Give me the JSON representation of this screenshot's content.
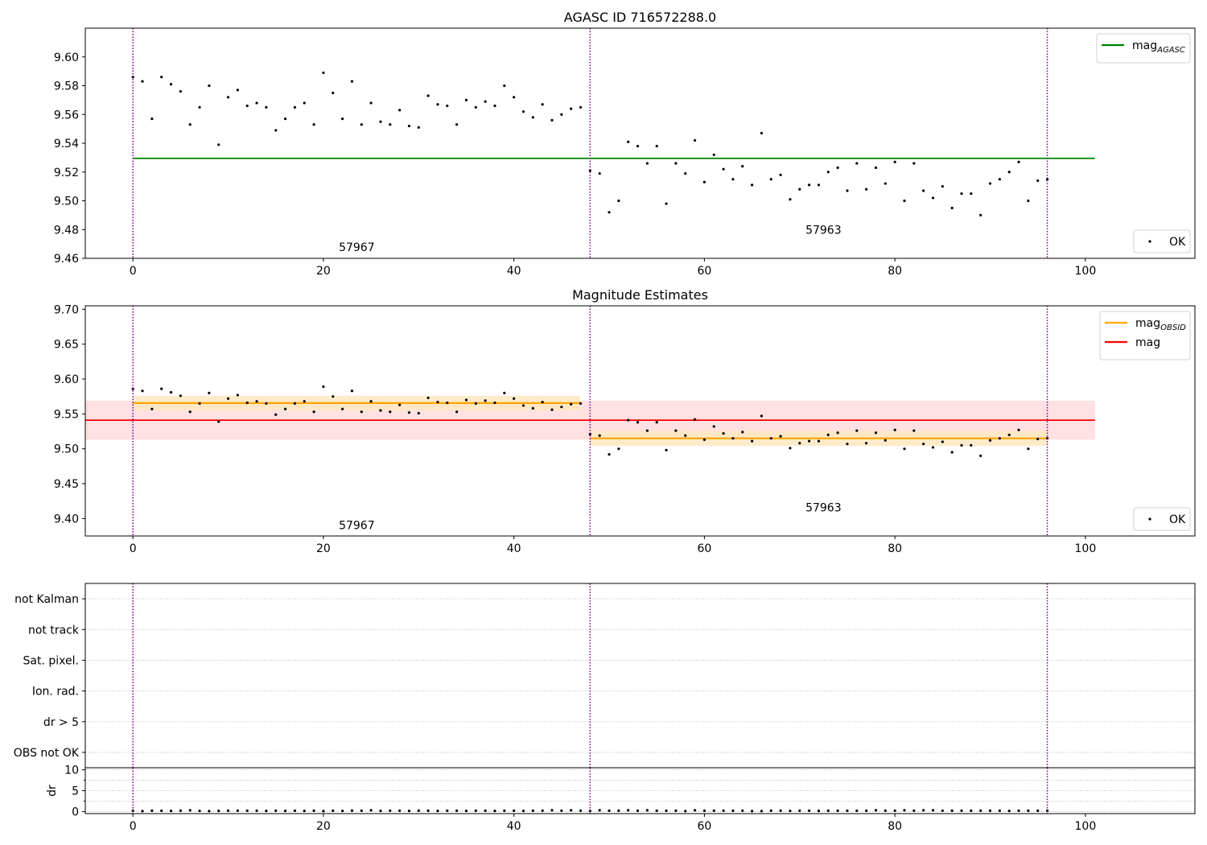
{
  "figure": {
    "background": "#ffffff"
  },
  "colors": {
    "obsid_boundary": "#800080",
    "points": "#000000",
    "mag_agasc": "#008000",
    "mag_obsid": "#ffa500",
    "mag_obsid_band": "#ffe8c2",
    "mag": "#ff0000",
    "mag_band": "#ffe0e3",
    "grid": "#b0b0b0"
  },
  "chart_data": [
    {
      "type": "scatter",
      "title": "AGASC ID 716572288.0",
      "xlim": [
        -5,
        111.5
      ],
      "ylim": [
        9.46,
        9.62
      ],
      "xticks": [
        "0",
        "20",
        "40",
        "60",
        "80",
        "100"
      ],
      "xtick_values": [
        0,
        20,
        40,
        60,
        80,
        100
      ],
      "yticks": [
        "9.46",
        "9.48",
        "9.50",
        "9.52",
        "9.54",
        "9.56",
        "9.58",
        "9.60"
      ],
      "ytick_values": [
        9.46,
        9.48,
        9.5,
        9.52,
        9.54,
        9.56,
        9.58,
        9.6
      ],
      "obsid_boundaries": [
        0,
        48,
        96
      ],
      "obsid_labels": [
        {
          "text": "57967",
          "x": 23.5,
          "y": 9.465
        },
        {
          "text": "57963",
          "x": 72.5,
          "y": 9.477
        }
      ],
      "lines": [
        {
          "name": "mag_AGASC",
          "label_main": "mag",
          "label_sub": "AGASC",
          "y": 9.5295,
          "x": [
            0,
            101
          ]
        }
      ],
      "series": [
        {
          "name": "OK",
          "x_start": 0,
          "values": [
            9.586,
            9.583,
            9.557,
            9.586,
            9.581,
            9.576,
            9.553,
            9.565,
            9.58,
            9.539,
            9.572,
            9.577,
            9.566,
            9.568,
            9.565,
            9.549,
            9.557,
            9.565,
            9.568,
            9.553,
            9.589,
            9.575,
            9.557,
            9.583,
            9.553,
            9.568,
            9.555,
            9.553,
            9.563,
            9.552,
            9.551,
            9.573,
            9.567,
            9.566,
            9.553,
            9.57,
            9.565,
            9.569,
            9.566,
            9.58,
            9.572,
            9.562,
            9.558,
            9.567,
            9.556,
            9.56,
            9.564,
            9.565,
            9.521,
            9.519,
            9.492,
            9.5,
            9.541,
            9.538,
            9.526,
            9.538,
            9.498,
            9.526,
            9.519,
            9.542,
            9.513,
            9.532,
            9.522,
            9.515,
            9.524,
            9.511,
            9.547,
            9.515,
            9.518,
            9.501,
            9.508,
            9.511,
            9.511,
            9.52,
            9.523,
            9.507,
            9.526,
            9.508,
            9.523,
            9.512,
            9.527,
            9.5,
            9.526,
            9.507,
            9.502,
            9.51,
            9.495,
            9.505,
            9.505,
            9.49,
            9.512,
            9.515,
            9.52,
            9.527,
            9.5,
            9.514,
            9.515
          ]
        }
      ],
      "legends": {
        "lines": "top-right",
        "points": "bottom-right"
      }
    },
    {
      "type": "scatter",
      "title": "Magnitude Estimates",
      "xlim": [
        -5,
        111.5
      ],
      "ylim": [
        9.375,
        9.705
      ],
      "xticks": [
        "0",
        "20",
        "40",
        "60",
        "80",
        "100"
      ],
      "xtick_values": [
        0,
        20,
        40,
        60,
        80,
        100
      ],
      "yticks": [
        "9.40",
        "9.45",
        "9.50",
        "9.55",
        "9.60",
        "9.65",
        "9.70"
      ],
      "ytick_values": [
        9.4,
        9.45,
        9.5,
        9.55,
        9.6,
        9.65,
        9.7
      ],
      "obsid_boundaries": [
        0,
        48,
        96
      ],
      "obsid_labels": [
        {
          "text": "57967",
          "x": 23.5,
          "y": 9.385
        },
        {
          "text": "57963",
          "x": 72.5,
          "y": 9.41
        }
      ],
      "mag_band": {
        "y": 9.541,
        "low": 9.513,
        "high": 9.569,
        "x": [
          -5,
          101
        ]
      },
      "obsid_segments": [
        {
          "x": [
            0,
            47
          ],
          "y": 9.5655,
          "low": 9.555,
          "high": 9.576
        },
        {
          "x": [
            48,
            96
          ],
          "y": 9.515,
          "low": 9.504,
          "high": 9.526
        }
      ],
      "lines": [
        {
          "name": "mag_OBSID",
          "label_main": "mag",
          "label_sub": "OBSID"
        },
        {
          "name": "mag",
          "label_main": "mag",
          "label_sub": ""
        }
      ],
      "series": [
        {
          "name": "OK",
          "x_start": 0,
          "values": [
            9.586,
            9.583,
            9.557,
            9.586,
            9.581,
            9.576,
            9.553,
            9.565,
            9.58,
            9.539,
            9.572,
            9.577,
            9.566,
            9.568,
            9.565,
            9.549,
            9.557,
            9.565,
            9.568,
            9.553,
            9.589,
            9.575,
            9.557,
            9.583,
            9.553,
            9.568,
            9.555,
            9.553,
            9.563,
            9.552,
            9.551,
            9.573,
            9.567,
            9.566,
            9.553,
            9.57,
            9.565,
            9.569,
            9.566,
            9.58,
            9.572,
            9.562,
            9.558,
            9.567,
            9.556,
            9.56,
            9.564,
            9.565,
            9.521,
            9.519,
            9.492,
            9.5,
            9.541,
            9.538,
            9.526,
            9.538,
            9.498,
            9.526,
            9.519,
            9.542,
            9.513,
            9.532,
            9.522,
            9.515,
            9.524,
            9.511,
            9.547,
            9.515,
            9.518,
            9.501,
            9.508,
            9.511,
            9.511,
            9.52,
            9.523,
            9.507,
            9.526,
            9.508,
            9.523,
            9.512,
            9.527,
            9.5,
            9.526,
            9.507,
            9.502,
            9.51,
            9.495,
            9.505,
            9.505,
            9.49,
            9.512,
            9.515,
            9.52,
            9.527,
            9.5,
            9.514,
            9.515
          ]
        }
      ],
      "legends": {
        "lines": "top-right",
        "points": "bottom-right"
      }
    },
    {
      "type": "scatter",
      "title": "",
      "xlim": [
        -5,
        111.5
      ],
      "ylim": [
        -0.5,
        5.5
      ],
      "yticks": [
        "OBS not OK",
        "dr > 5",
        "Ion. rad.",
        "Sat. pixel.",
        "not track",
        "not Kalman"
      ],
      "ytick_values": [
        0,
        1,
        2,
        3,
        4,
        5
      ],
      "grid": true,
      "obsid_boundaries": [
        0,
        48,
        96
      ],
      "series": []
    },
    {
      "type": "scatter",
      "title": "",
      "xlim": [
        -5,
        111.5
      ],
      "ylim": [
        -0.5,
        10.5
      ],
      "ylabel": "dr",
      "xticks": [
        "0",
        "20",
        "40",
        "60",
        "80",
        "100"
      ],
      "xtick_values": [
        0,
        20,
        40,
        60,
        80,
        100
      ],
      "yticks": [
        "0",
        "5",
        "10"
      ],
      "ytick_values": [
        0,
        5,
        10
      ],
      "grid": true,
      "obsid_boundaries": [
        0,
        48,
        96
      ],
      "series": [
        {
          "name": "dr",
          "x_start": 0,
          "values": [
            0.2,
            0.1,
            0.2,
            0.2,
            0.15,
            0.2,
            0.3,
            0.15,
            0.1,
            0.15,
            0.2,
            0.2,
            0.2,
            0.2,
            0.15,
            0.2,
            0.15,
            0.2,
            0.15,
            0.2,
            0.1,
            0.2,
            0.15,
            0.2,
            0.2,
            0.3,
            0.15,
            0.2,
            0.2,
            0.15,
            0.2,
            0.2,
            0.15,
            0.2,
            0.2,
            0.15,
            0.2,
            0.2,
            0.15,
            0.2,
            0.2,
            0.15,
            0.2,
            0.2,
            0.3,
            0.2,
            0.3,
            0.2,
            0.15,
            0.3,
            0.2,
            0.2,
            0.3,
            0.2,
            0.3,
            0.2,
            0.2,
            0.2,
            0.1,
            0.3,
            0.2,
            0.2,
            0.2,
            0.2,
            0.2,
            0.1,
            0.1,
            0.2,
            0.2,
            0.15,
            0.2,
            0.2,
            0.15,
            0.2,
            0.2,
            0.2,
            0.2,
            0.2,
            0.3,
            0.2,
            0.2,
            0.3,
            0.2,
            0.3,
            0.3,
            0.2,
            0.2,
            0.2,
            0.2,
            0.2,
            0.2,
            0.2,
            0.15,
            0.2,
            0.2,
            0.2,
            0.2
          ]
        }
      ]
    }
  ]
}
